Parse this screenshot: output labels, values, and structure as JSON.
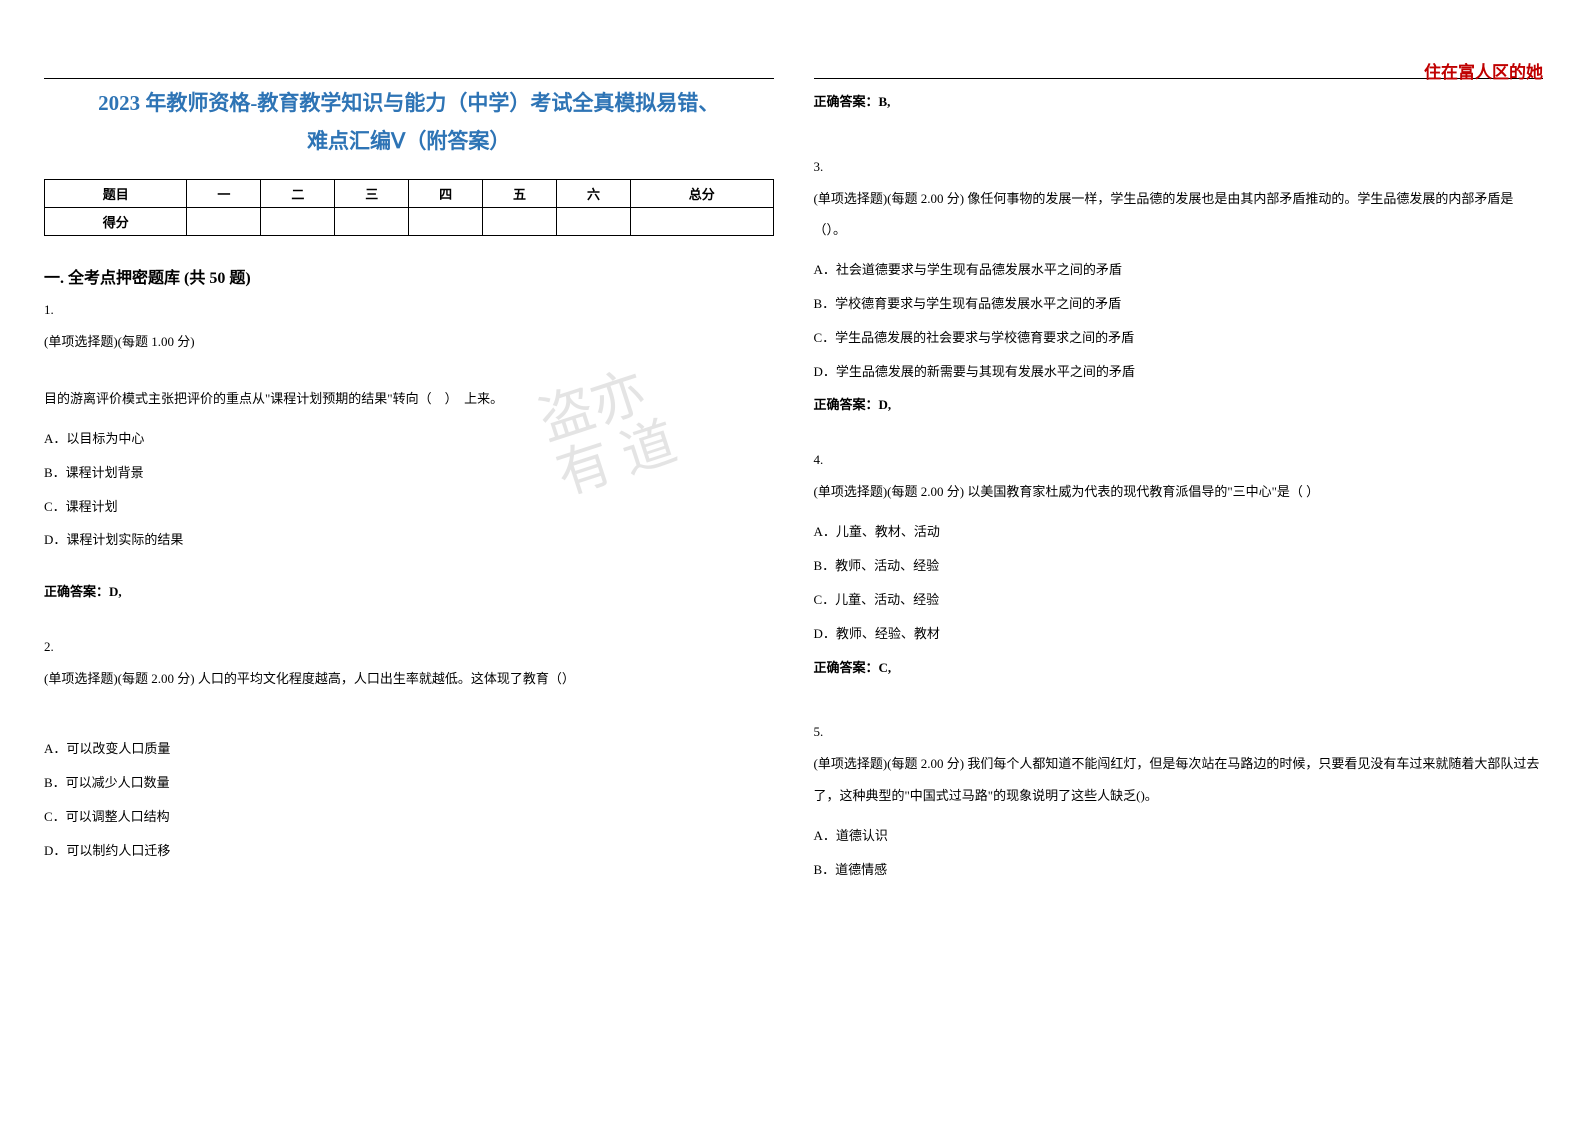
{
  "header": {
    "watermark": "住在富人区的她"
  },
  "title_line1": "2023 年教师资格-教育教学知识与能力（中学）考试全真模拟易错、",
  "title_line2": "难点汇编Ⅴ（附答案）",
  "score_table": {
    "row1": [
      "题目",
      "一",
      "二",
      "三",
      "四",
      "五",
      "六",
      "总分"
    ],
    "row2_label": "得分"
  },
  "section_heading": "一. 全考点押密题库 (共 50 题)",
  "questions": [
    {
      "num": "1.",
      "meta": "(单项选择题)(每题 1.00 分)",
      "stem": "目的游离评价模式主张把评价的重点从\"课程计划预期的结果\"转向（　）　上来。",
      "opts": [
        "A．以目标为中心",
        "B．课程计划背景",
        "C．课程计划",
        "D．课程计划实际的结果"
      ],
      "answer": "正确答案：D,"
    },
    {
      "num": "2.",
      "meta": "(单项选择题)(每题 2.00 分) 人口的平均文化程度越高，人口出生率就越低。这体现了教育（）",
      "stem": "",
      "opts": [
        "A．可以改变人口质量",
        "B．可以减少人口数量",
        "C．可以调整人口结构",
        "D．可以制约人口迁移"
      ],
      "answer": "正确答案：B,"
    },
    {
      "num": "3.",
      "meta": "(单项选择题)(每题 2.00 分) 像任何事物的发展一样，学生品德的发展也是由其内部矛盾推动的。学生品德发展的内部矛盾是（）。",
      "stem": "",
      "opts": [
        "A．社会道德要求与学生现有品德发展水平之间的矛盾",
        "B．学校德育要求与学生现有品德发展水平之间的矛盾",
        "C．学生品德发展的社会要求与学校德育要求之间的矛盾",
        "D．学生品德发展的新需要与其现有发展水平之间的矛盾"
      ],
      "answer": "正确答案：D,"
    },
    {
      "num": "4.",
      "meta": "(单项选择题)(每题 2.00 分) 以美国教育家杜威为代表的现代教育派倡导的\"三中心\"是（ ）",
      "stem": "",
      "opts": [
        "A．儿童、教材、活动",
        "B．教师、活动、经验",
        "C．儿童、活动、经验",
        "D．教师、经验、教材"
      ],
      "answer": "正确答案：C,"
    },
    {
      "num": "5.",
      "meta": "(单项选择题)(每题 2.00 分) 我们每个人都知道不能闯红灯，但是每次站在马路边的时候，只要看见没有车过来就随着大部队过去了，这种典型的\"中国式过马路\"的现象说明了这些人缺乏()。",
      "stem": "",
      "opts": [
        "A．道德认识",
        "B．道德情感"
      ],
      "answer": ""
    }
  ],
  "bg_watermark": "盗亦有\n道"
}
